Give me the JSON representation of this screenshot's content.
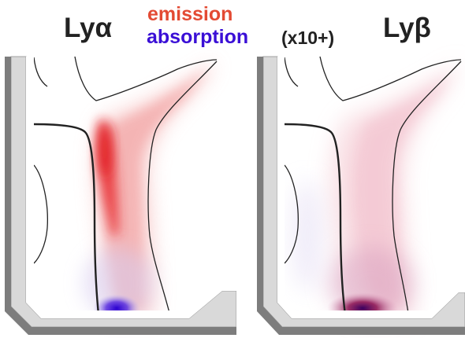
{
  "header": {
    "left_label": "Lyα",
    "right_label": "Lyβ",
    "emission_label": "emission",
    "absorption_label": "absorption",
    "multiplier_label": "(x10+)"
  },
  "colors": {
    "emission": "#e34a33",
    "absorption": "#3a0fd6",
    "wall_light": "#d9d9d9",
    "wall_dark": "#808080",
    "contour": "#222222"
  },
  "panels": [
    {
      "name": "left-panel",
      "caption_ref": "header.left_label"
    },
    {
      "name": "right-panel",
      "caption_ref": "header.right_label"
    }
  ]
}
